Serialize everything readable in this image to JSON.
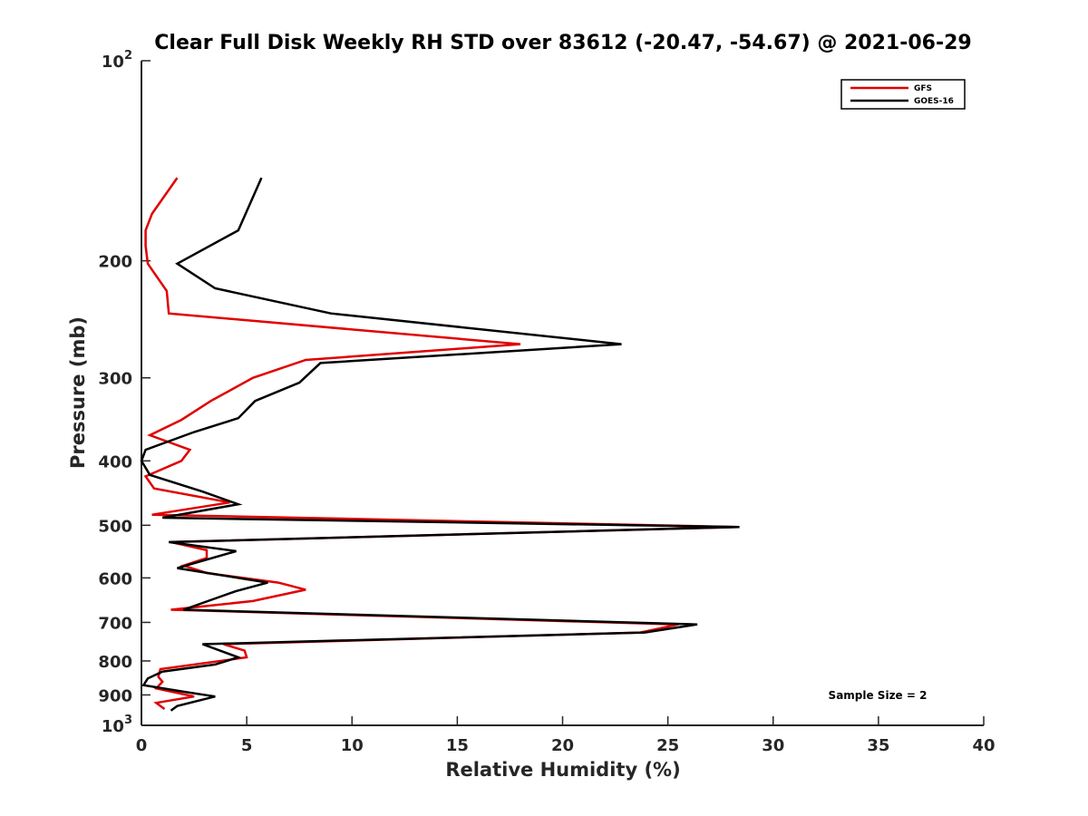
{
  "chart_data": {
    "type": "line",
    "title": "Clear Full Disk Weekly RH STD over 83612 (-20.47, -54.67) @ 2021-06-29",
    "xlabel": "Relative Humidity (%)",
    "ylabel": "Pressure (mb)",
    "xlim": [
      0,
      40
    ],
    "ylim": [
      100,
      1000
    ],
    "y_scale": "log",
    "y_reversed": true,
    "x_ticks": [
      "0",
      "5",
      "10",
      "15",
      "20",
      "25",
      "30",
      "35",
      "40"
    ],
    "y_ticks": [
      {
        "value": 100,
        "base": "10",
        "exp": "2"
      },
      {
        "value": 200,
        "label": "200"
      },
      {
        "value": 300,
        "label": "300"
      },
      {
        "value": 400,
        "label": "400"
      },
      {
        "value": 500,
        "label": "500"
      },
      {
        "value": 600,
        "label": "600"
      },
      {
        "value": 700,
        "label": "700"
      },
      {
        "value": 800,
        "label": "800"
      },
      {
        "value": 900,
        "label": "900"
      },
      {
        "value": 1000,
        "base": "10",
        "exp": "3"
      }
    ],
    "grid": false,
    "legend_position": "top-right",
    "annotation": "Sample Size = 2",
    "series": [
      {
        "name": "GFS",
        "color": "#e00000",
        "x": [
          1.7,
          0.5,
          0.2,
          0.2,
          0.3,
          1.2,
          1.3,
          18.0,
          7.8,
          5.3,
          3.3,
          1.9,
          0.4,
          2.3,
          1.9,
          0.2,
          0.6,
          4.2,
          0.5,
          28.3,
          1.4,
          3.1,
          3.1,
          2.0,
          3.1,
          6.5,
          7.8,
          5.3,
          1.4,
          25.5,
          23.7,
          3.9,
          4.9,
          5.0,
          0.9,
          0.8,
          1.0,
          0.7,
          2.5,
          0.7,
          1.1
        ],
        "y": [
          150,
          170,
          180,
          190,
          202,
          222,
          240,
          267,
          282,
          300,
          325,
          347,
          366,
          385,
          400,
          422,
          440,
          462,
          482,
          503,
          530,
          545,
          560,
          575,
          590,
          610,
          625,
          650,
          670,
          705,
          725,
          755,
          772,
          790,
          823,
          845,
          860,
          880,
          905,
          925,
          945
        ]
      },
      {
        "name": "GOES-16",
        "color": "#000000",
        "x": [
          5.7,
          4.6,
          1.7,
          3.5,
          9.0,
          22.8,
          8.5,
          7.5,
          5.4,
          4.6,
          2.5,
          0.2,
          0.0,
          0.4,
          2.9,
          4.6,
          1.0,
          28.4,
          1.3,
          4.5,
          1.7,
          6.0,
          4.5,
          2.0,
          26.4,
          23.9,
          2.9,
          4.6,
          3.5,
          1.0,
          0.3,
          0.1,
          2.0,
          3.5,
          1.7,
          1.4
        ],
        "y": [
          150,
          180,
          202,
          220,
          240,
          267,
          285,
          305,
          325,
          345,
          362,
          385,
          400,
          420,
          445,
          465,
          487,
          503,
          530,
          547,
          580,
          610,
          628,
          670,
          705,
          725,
          755,
          790,
          810,
          830,
          850,
          870,
          890,
          905,
          935,
          950
        ]
      }
    ]
  }
}
